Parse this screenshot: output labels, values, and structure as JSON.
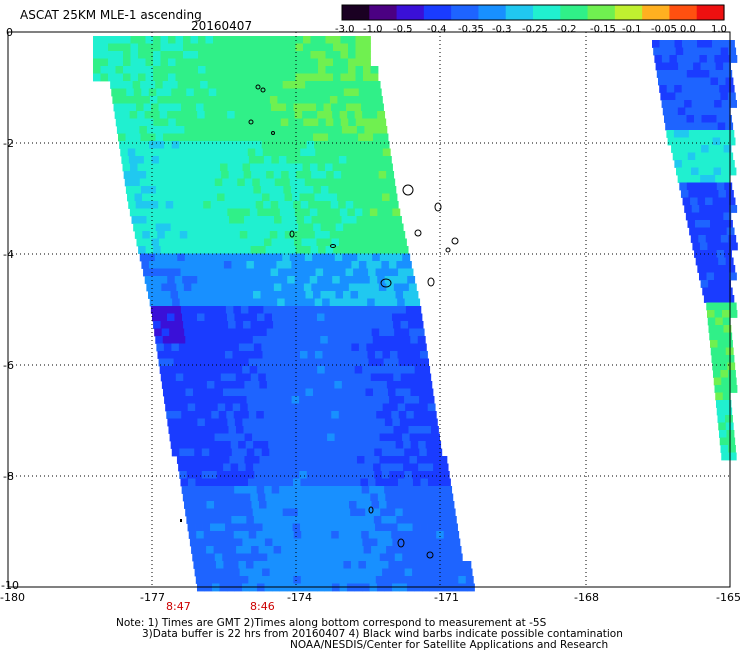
{
  "header": {
    "title": "ASCAT 25KM MLE-1 ascending",
    "date": "20160407"
  },
  "colorbar": {
    "labels": [
      "-3.0",
      "-1.0",
      "-0.5",
      "-0.4",
      "-0.35",
      "-0.3",
      "-0.25",
      "-0.2",
      "-0.15",
      "-0.1",
      "-0.05",
      "0.0",
      "1.0"
    ],
    "colors": [
      "#1a0022",
      "#4b0082",
      "#3a10d8",
      "#1a3cff",
      "#1e64ff",
      "#1890ff",
      "#20c8f0",
      "#20f0d0",
      "#30f088",
      "#70f050",
      "#c0f030",
      "#ffb020",
      "#ff5010",
      "#ee1010"
    ]
  },
  "axes": {
    "y_labels": [
      "0",
      "-2",
      "-4",
      "-6",
      "-8",
      "-10"
    ],
    "x_labels": [
      "-180",
      "-177",
      "-174",
      "-171",
      "-168",
      "-165"
    ],
    "pass_times": [
      "8:47",
      "8:46"
    ]
  },
  "footer": {
    "line1": "Note: 1) Times are GMT 2)Times along bottom correspond to measurement at -5S",
    "line2": "3)Data buffer is 22 hrs from 20160407 4) Black wind barbs indicate possible contamination",
    "line3": "NOAA/NESDIS/Center for Satellite Applications and Research"
  }
}
